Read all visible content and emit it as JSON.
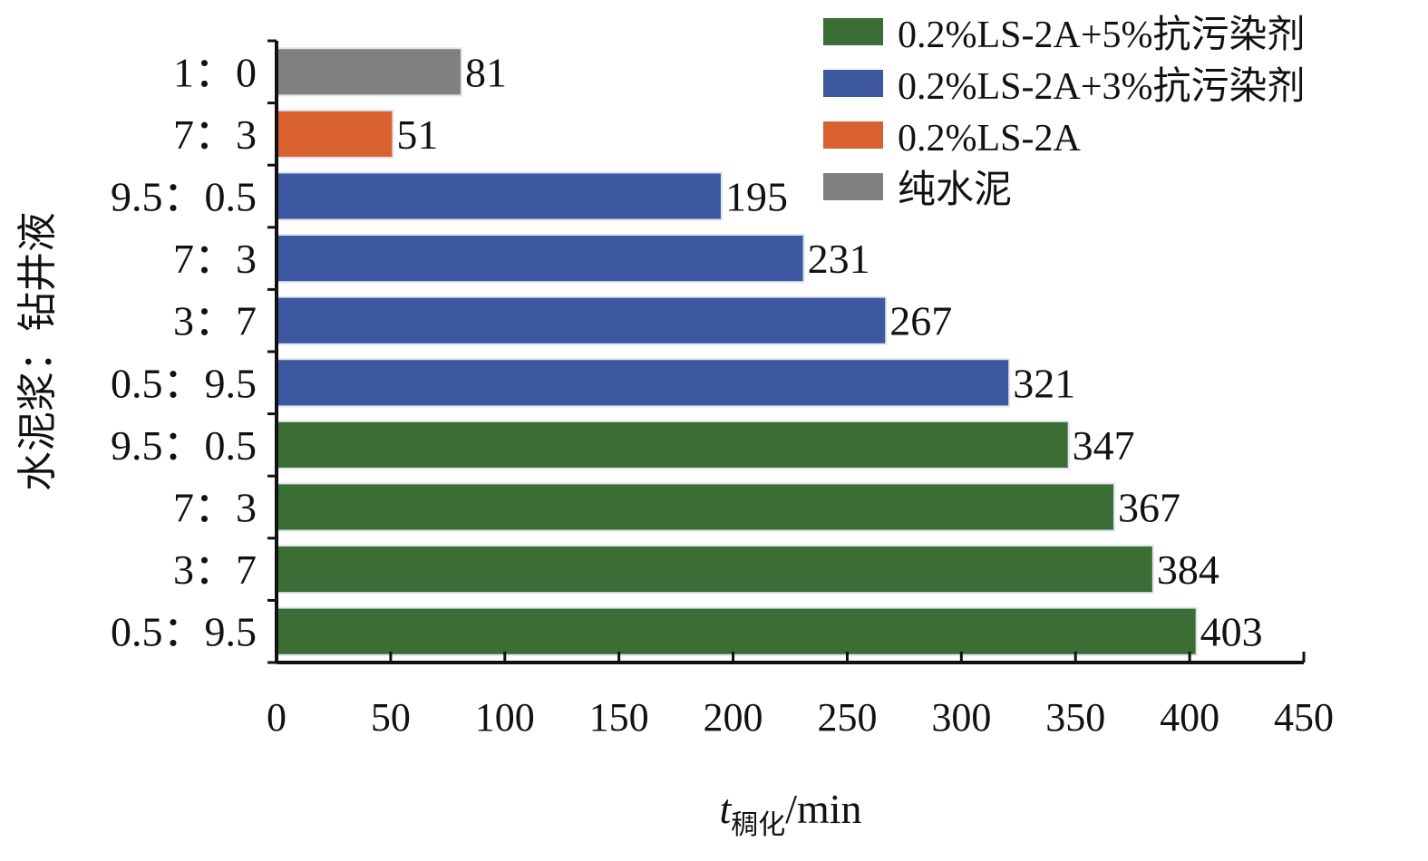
{
  "chart_data": {
    "type": "bar",
    "orientation": "horizontal",
    "categories": [
      "1：0",
      "7：3",
      "9.5：0.5",
      "7：3",
      "3：7",
      "0.5：9.5",
      "9.5：0.5",
      "7：3",
      "3：7",
      "0.5：9.5"
    ],
    "values": [
      81,
      51,
      195,
      231,
      267,
      321,
      347,
      367,
      384,
      403
    ],
    "bar_series": [
      "纯水泥",
      "0.2%LS-2A",
      "0.2%LS-2A+3%抗污染剂",
      "0.2%LS-2A+3%抗污染剂",
      "0.2%LS-2A+3%抗污染剂",
      "0.2%LS-2A+3%抗污染剂",
      "0.2%LS-2A+5%抗污染剂",
      "0.2%LS-2A+5%抗污染剂",
      "0.2%LS-2A+5%抗污染剂",
      "0.2%LS-2A+5%抗污染剂"
    ],
    "series": [
      {
        "name": "0.2%LS-2A+5%抗污染剂",
        "color": "#3a6e34"
      },
      {
        "name": "0.2%LS-2A+3%抗污染剂",
        "color": "#3d57a0"
      },
      {
        "name": "0.2%LS-2A",
        "color": "#d9612f"
      },
      {
        "name": "纯水泥",
        "color": "#808080"
      }
    ],
    "xlabel": {
      "italic": "t",
      "subscript": "稠化",
      "unit": "/min"
    },
    "ylabel": "水泥浆：钻井液",
    "xlim": [
      0,
      450
    ],
    "xticks": [
      0,
      50,
      100,
      150,
      200,
      250,
      300,
      350,
      400,
      450
    ],
    "grid": false,
    "legend_position": "top-right"
  }
}
